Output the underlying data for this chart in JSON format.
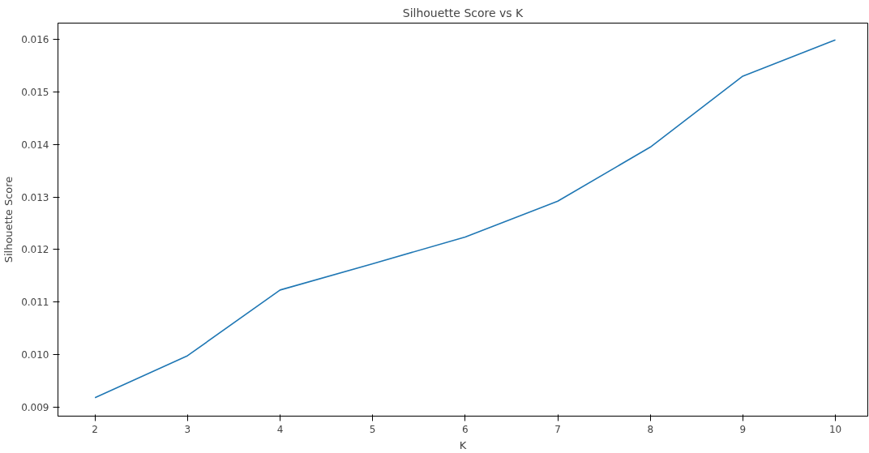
{
  "chart_data": {
    "type": "line",
    "title": "Silhouette Score vs K",
    "xlabel": "K",
    "ylabel": "Silhouette Score",
    "x": [
      2,
      3,
      4,
      5,
      6,
      7,
      8,
      9,
      10
    ],
    "series": [
      {
        "color": "#1f77b4",
        "values": [
          0.00918,
          0.00998,
          0.01123,
          0.01173,
          0.01224,
          0.01292,
          0.01395,
          0.0153,
          0.01599
        ]
      }
    ],
    "xlim": [
      1.6,
      10.35
    ],
    "ylim": [
      0.00883,
      0.01631
    ],
    "xticks": [
      2,
      3,
      4,
      5,
      6,
      7,
      8,
      9,
      10
    ],
    "yticks": [
      {
        "value": 0.009,
        "label": "0.009"
      },
      {
        "value": 0.01,
        "label": "0.010"
      },
      {
        "value": 0.011,
        "label": "0.011"
      },
      {
        "value": 0.012,
        "label": "0.012"
      },
      {
        "value": 0.013,
        "label": "0.013"
      },
      {
        "value": 0.014,
        "label": "0.014"
      },
      {
        "value": 0.015,
        "label": "0.015"
      },
      {
        "value": 0.016,
        "label": "0.016"
      }
    ],
    "grid": false,
    "marker": "none",
    "line_style": "solid"
  }
}
